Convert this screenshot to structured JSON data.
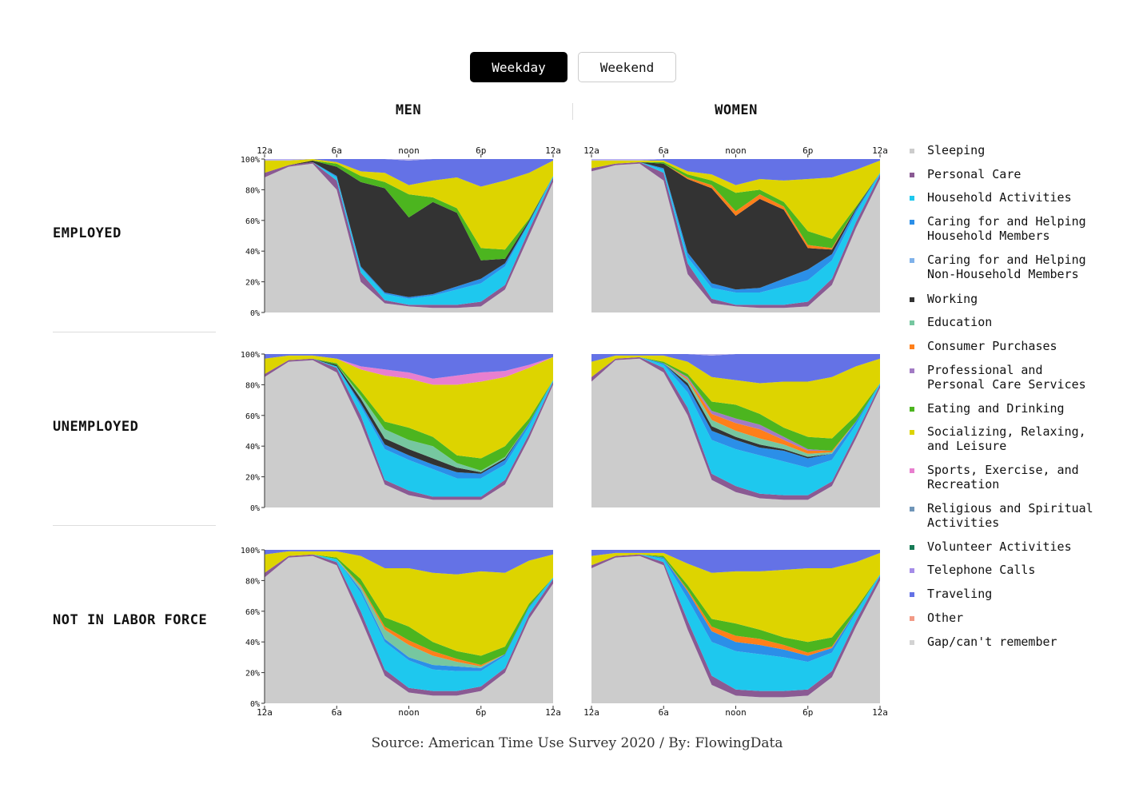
{
  "toggle": {
    "weekday_label": "Weekday",
    "weekend_label": "Weekend",
    "selected": "Weekday"
  },
  "columns": {
    "men": "MEN",
    "women": "WOMEN"
  },
  "rows": {
    "employed": "EMPLOYED",
    "unemployed": "UNEMPLOYED",
    "not_in_labor_force": "NOT IN LABOR FORCE"
  },
  "legend": [
    {
      "label": "Sleeping",
      "color": "#cccccc"
    },
    {
      "label": "Personal Care",
      "color": "#8a5a93"
    },
    {
      "label": "Household Activities",
      "color": "#1ec8ee"
    },
    {
      "label": "Caring for and Helping\nHousehold Members",
      "color": "#2b8fe8"
    },
    {
      "label": "Caring for and Helping\nNon-Household Members",
      "color": "#7fb2ea"
    },
    {
      "label": "Working",
      "color": "#333333"
    },
    {
      "label": "Education",
      "color": "#76c7a0"
    },
    {
      "label": "Consumer Purchases",
      "color": "#ff7f1a"
    },
    {
      "label": "Professional and\nPersonal Care Services",
      "color": "#a27bc4"
    },
    {
      "label": "Eating and Drinking",
      "color": "#4cb51f"
    },
    {
      "label": "Socializing, Relaxing,\nand Leisure",
      "color": "#ddd400"
    },
    {
      "label": "Sports, Exercise, and\nRecreation",
      "color": "#e87fcf"
    },
    {
      "label": "Religious and Spiritual\nActivities",
      "color": "#6f95b8"
    },
    {
      "label": "Volunteer Activities",
      "color": "#177a55"
    },
    {
      "label": "Telephone Calls",
      "color": "#a58ce8"
    },
    {
      "label": "Traveling",
      "color": "#6472e6"
    },
    {
      "label": "Other",
      "color": "#f29a86"
    },
    {
      "label": "Gap/can't remember",
      "color": "#d3d3d3"
    }
  ],
  "source": "Source: American Time Use Survey 2020 / By: FlowingData",
  "chart_data": {
    "type": "area",
    "stacked": true,
    "x_ticks": [
      "12a",
      "6a",
      "noon",
      "6p",
      "12a"
    ],
    "y_ticks": [
      "0%",
      "20%",
      "40%",
      "60%",
      "80%",
      "100%"
    ],
    "x_hours": [
      0,
      2,
      4,
      6,
      8,
      10,
      12,
      14,
      16,
      18,
      20,
      22,
      24
    ],
    "ylim": [
      0,
      100
    ],
    "panels": [
      {
        "row": "EMPLOYED",
        "col": "MEN",
        "layers": {
          "Sleeping": [
            88,
            95,
            97,
            80,
            20,
            6,
            4,
            3,
            3,
            4,
            15,
            50,
            85
          ],
          "Personal Care": [
            3,
            1,
            1,
            6,
            6,
            2,
            1,
            2,
            2,
            3,
            3,
            4,
            3
          ],
          "Household Activities": [
            0,
            0,
            0,
            2,
            3,
            4,
            4,
            6,
            10,
            12,
            12,
            4,
            1
          ],
          "Caring for and Helping Household Members": [
            0,
            0,
            0,
            1,
            1,
            1,
            1,
            1,
            2,
            3,
            2,
            1,
            0
          ],
          "Working": [
            0,
            0,
            1,
            6,
            55,
            68,
            52,
            60,
            48,
            12,
            3,
            1,
            0
          ],
          "Eating and Drinking": [
            0,
            0,
            0,
            2,
            4,
            4,
            15,
            3,
            3,
            8,
            6,
            1,
            0
          ],
          "Socializing, Relaxing, and Leisure": [
            8,
            3,
            1,
            1,
            3,
            6,
            6,
            11,
            20,
            40,
            45,
            30,
            10
          ],
          "Traveling": [
            0,
            0,
            0,
            2,
            8,
            9,
            16,
            14,
            12,
            18,
            14,
            9,
            1
          ]
        }
      },
      {
        "row": "EMPLOYED",
        "col": "WOMEN",
        "layers": {
          "Sleeping": [
            92,
            96,
            97,
            86,
            25,
            6,
            4,
            3,
            3,
            4,
            18,
            55,
            87
          ],
          "Personal Care": [
            2,
            1,
            1,
            5,
            7,
            3,
            1,
            2,
            2,
            3,
            4,
            4,
            3
          ],
          "Household Activities": [
            0,
            0,
            0,
            2,
            4,
            7,
            8,
            8,
            12,
            14,
            12,
            6,
            1
          ],
          "Caring for and Helping Household Members": [
            0,
            0,
            0,
            1,
            3,
            3,
            2,
            3,
            5,
            7,
            4,
            2,
            0
          ],
          "Working": [
            0,
            0,
            0,
            3,
            48,
            62,
            48,
            58,
            45,
            14,
            3,
            1,
            0
          ],
          "Consumer Purchases": [
            0,
            0,
            0,
            0,
            1,
            2,
            3,
            3,
            2,
            2,
            1,
            0,
            0
          ],
          "Eating and Drinking": [
            0,
            0,
            0,
            1,
            2,
            3,
            12,
            3,
            3,
            9,
            6,
            1,
            0
          ],
          "Socializing, Relaxing, and Leisure": [
            5,
            2,
            1,
            1,
            2,
            4,
            5,
            7,
            14,
            34,
            40,
            24,
            8
          ],
          "Traveling": [
            0,
            0,
            0,
            1,
            8,
            10,
            17,
            13,
            14,
            13,
            12,
            7,
            1
          ]
        }
      },
      {
        "row": "UNEMPLOYED",
        "col": "MEN",
        "layers": {
          "Sleeping": [
            85,
            95,
            96,
            88,
            55,
            15,
            8,
            5,
            5,
            5,
            15,
            45,
            80
          ],
          "Personal Care": [
            2,
            1,
            1,
            3,
            5,
            3,
            3,
            2,
            2,
            2,
            3,
            3,
            2
          ],
          "Household Activities": [
            0,
            0,
            0,
            1,
            6,
            20,
            20,
            18,
            12,
            12,
            10,
            5,
            1
          ],
          "Caring for and Helping Household Members": [
            0,
            0,
            0,
            0,
            2,
            3,
            3,
            3,
            4,
            3,
            3,
            2,
            0
          ],
          "Working": [
            0,
            0,
            0,
            1,
            3,
            4,
            4,
            4,
            3,
            1,
            1,
            0,
            0
          ],
          "Education": [
            0,
            0,
            0,
            0,
            2,
            6,
            6,
            8,
            3,
            1,
            1,
            0,
            0
          ],
          "Eating and Drinking": [
            0,
            0,
            0,
            1,
            3,
            5,
            8,
            6,
            5,
            8,
            7,
            3,
            0
          ],
          "Socializing, Relaxing, and Leisure": [
            10,
            3,
            2,
            3,
            14,
            30,
            32,
            34,
            46,
            50,
            45,
            33,
            15
          ],
          "Sports, Exercise, and Recreation": [
            0,
            0,
            0,
            0,
            2,
            4,
            4,
            4,
            6,
            6,
            4,
            2,
            0
          ],
          "Traveling": [
            3,
            1,
            1,
            3,
            8,
            10,
            12,
            16,
            14,
            12,
            11,
            7,
            2
          ]
        }
      },
      {
        "row": "UNEMPLOYED",
        "col": "WOMEN",
        "layers": {
          "Sleeping": [
            82,
            96,
            97,
            88,
            60,
            18,
            10,
            6,
            5,
            5,
            14,
            45,
            78
          ],
          "Personal Care": [
            3,
            1,
            1,
            3,
            5,
            4,
            4,
            3,
            3,
            3,
            3,
            3,
            2
          ],
          "Household Activities": [
            0,
            0,
            0,
            2,
            10,
            22,
            24,
            25,
            22,
            18,
            14,
            6,
            1
          ],
          "Caring for and Helping Household Members": [
            0,
            0,
            0,
            1,
            4,
            6,
            6,
            5,
            7,
            6,
            4,
            2,
            0
          ],
          "Working": [
            0,
            0,
            0,
            0,
            2,
            3,
            2,
            2,
            1,
            1,
            0,
            0,
            0
          ],
          "Education": [
            0,
            0,
            0,
            0,
            2,
            4,
            4,
            4,
            3,
            2,
            1,
            0,
            0
          ],
          "Consumer Purchases": [
            0,
            0,
            0,
            0,
            1,
            4,
            5,
            6,
            3,
            2,
            1,
            0,
            0
          ],
          "Professional and Personal Care Services": [
            0,
            0,
            0,
            0,
            1,
            2,
            3,
            3,
            2,
            1,
            0,
            0,
            0
          ],
          "Eating and Drinking": [
            0,
            0,
            0,
            1,
            2,
            6,
            9,
            7,
            6,
            8,
            8,
            4,
            0
          ],
          "Socializing, Relaxing, and Leisure": [
            10,
            2,
            1,
            4,
            8,
            16,
            16,
            20,
            30,
            36,
            40,
            32,
            16
          ],
          "Traveling": [
            5,
            1,
            1,
            1,
            5,
            14,
            17,
            19,
            18,
            18,
            15,
            8,
            3
          ]
        }
      },
      {
        "row": "NOT IN LABOR FORCE",
        "col": "MEN",
        "layers": {
          "Sleeping": [
            82,
            95,
            96,
            90,
            55,
            18,
            7,
            5,
            5,
            8,
            20,
            55,
            78
          ],
          "Personal Care": [
            3,
            1,
            1,
            2,
            5,
            4,
            3,
            3,
            3,
            3,
            3,
            3,
            3
          ],
          "Household Activities": [
            0,
            0,
            0,
            2,
            12,
            18,
            18,
            14,
            13,
            10,
            8,
            4,
            1
          ],
          "Caring for and Helping Household Members": [
            0,
            0,
            0,
            0,
            2,
            2,
            2,
            3,
            3,
            2,
            1,
            1,
            0
          ],
          "Education": [
            0,
            0,
            0,
            0,
            2,
            6,
            8,
            6,
            3,
            1,
            0,
            0,
            0
          ],
          "Consumer Purchases": [
            0,
            0,
            0,
            0,
            1,
            2,
            3,
            3,
            2,
            1,
            0,
            0,
            0
          ],
          "Eating and Drinking": [
            0,
            0,
            0,
            1,
            4,
            6,
            9,
            6,
            5,
            6,
            5,
            2,
            0
          ],
          "Socializing, Relaxing, and Leisure": [
            12,
            3,
            2,
            4,
            15,
            32,
            38,
            45,
            50,
            55,
            48,
            28,
            15
          ],
          "Traveling": [
            3,
            1,
            1,
            1,
            4,
            12,
            12,
            15,
            16,
            14,
            15,
            7,
            3
          ]
        }
      },
      {
        "row": "NOT IN LABOR FORCE",
        "col": "WOMEN",
        "layers": {
          "Sleeping": [
            88,
            95,
            96,
            90,
            48,
            12,
            5,
            4,
            4,
            5,
            17,
            50,
            80
          ],
          "Personal Care": [
            2,
            1,
            1,
            2,
            6,
            6,
            4,
            4,
            4,
            4,
            4,
            4,
            3
          ],
          "Household Activities": [
            0,
            0,
            0,
            2,
            14,
            22,
            25,
            24,
            22,
            18,
            12,
            5,
            1
          ],
          "Caring for and Helping Household Members": [
            0,
            0,
            0,
            1,
            5,
            7,
            6,
            6,
            5,
            4,
            3,
            1,
            0
          ],
          "Consumer Purchases": [
            0,
            0,
            0,
            0,
            1,
            3,
            4,
            4,
            3,
            2,
            1,
            0,
            0
          ],
          "Eating and Drinking": [
            0,
            0,
            0,
            1,
            3,
            5,
            8,
            6,
            5,
            7,
            6,
            2,
            0
          ],
          "Socializing, Relaxing, and Leisure": [
            6,
            2,
            1,
            2,
            14,
            30,
            34,
            38,
            44,
            48,
            45,
            30,
            14
          ],
          "Traveling": [
            4,
            2,
            2,
            2,
            9,
            15,
            14,
            14,
            13,
            12,
            12,
            8,
            2
          ]
        }
      }
    ]
  }
}
